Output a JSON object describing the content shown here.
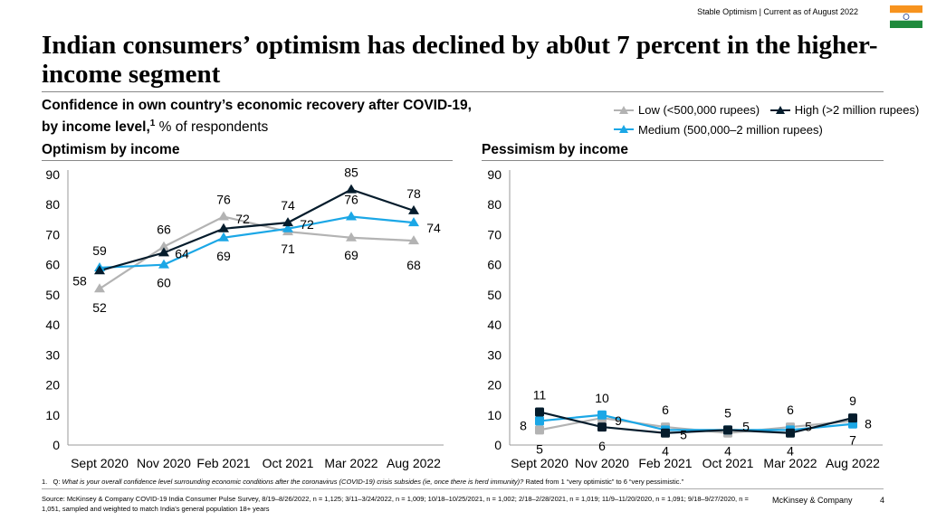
{
  "header": {
    "tracker": "Stable Optimism | Current as of August 2022",
    "flag_icon": "india-flag-icon",
    "title": "Indian consumers’ optimism has declined by ab0ut 7 percent in the higher-income segment"
  },
  "subtitle": {
    "bold": "Confidence in own country’s economic recovery after COVID-19, by income level,",
    "sup": "1",
    "normal": " % of respondents"
  },
  "legend": [
    {
      "name": "Low (<500,000 rupees)",
      "color": "#b3b3b3"
    },
    {
      "name": "High (>2 million rupees)",
      "color": "#051c2c"
    },
    {
      "name": "Medium (500,000–2 million rupees)",
      "color": "#1ba7e6"
    }
  ],
  "chart_data": [
    {
      "type": "line",
      "title": "Optimism by income",
      "categories": [
        "Sept 2020",
        "Nov 2020",
        "Feb 2021",
        "Oct 2021",
        "Mar 2022",
        "Aug 2022"
      ],
      "ylim": [
        0,
        90
      ],
      "yticks": [
        0,
        10,
        20,
        30,
        40,
        50,
        60,
        70,
        80,
        90
      ],
      "marker": "triangle",
      "series": [
        {
          "name": "Low (<500,000 rupees)",
          "color": "#b3b3b3",
          "values": [
            52,
            66,
            76,
            71,
            69,
            68
          ]
        },
        {
          "name": "Medium (500,000–2 million rupees)",
          "color": "#1ba7e6",
          "values": [
            59,
            60,
            69,
            72,
            76,
            74
          ]
        },
        {
          "name": "High (>2 million rupees)",
          "color": "#051c2c",
          "values": [
            58,
            64,
            72,
            74,
            85,
            78
          ]
        }
      ]
    },
    {
      "type": "line",
      "title": "Pessimism by income",
      "categories": [
        "Sept 2020",
        "Nov 2020",
        "Feb 2021",
        "Oct 2021",
        "Mar 2022",
        "Aug 2022"
      ],
      "ylim": [
        0,
        90
      ],
      "yticks": [
        0,
        10,
        20,
        30,
        40,
        50,
        60,
        70,
        80,
        90
      ],
      "marker": "square",
      "series": [
        {
          "name": "Low (<500,000 rupees)",
          "color": "#b3b3b3",
          "values": [
            5,
            9,
            6,
            4,
            6,
            8
          ]
        },
        {
          "name": "Medium (500,000–2 million rupees)",
          "color": "#1ba7e6",
          "values": [
            8,
            10,
            5,
            5,
            5,
            7
          ]
        },
        {
          "name": "High (>2 million rupees)",
          "color": "#051c2c",
          "values": [
            11,
            6,
            4,
            5,
            4,
            9
          ]
        }
      ]
    }
  ],
  "footnote": {
    "num": "1.",
    "q": "Q: ",
    "question": "What is your overall confidence level surrounding economic conditions after the coronavirus (COVID-19) crisis subsides (ie, once there is herd immunity)?",
    "rest": " Rated from 1 “very optimistic” to 6 “very pessimistic.”"
  },
  "source": "Source: McKinsey & Company COVID-19 India Consumer Pulse Survey, 8/19–8/26/2022, n = 1,125; 3/11–3/24/2022, n = 1,009; 10/18–10/25/2021, n = 1,002; 2/18–2/28/2021, n = 1,019; 11/9–11/20/2020, n = 1,091; 9/18–9/27/2020, n = 1,051, sampled and weighted to match India’s general population 18+ years",
  "footer": {
    "brand": "McKinsey & Company",
    "page": "4"
  }
}
